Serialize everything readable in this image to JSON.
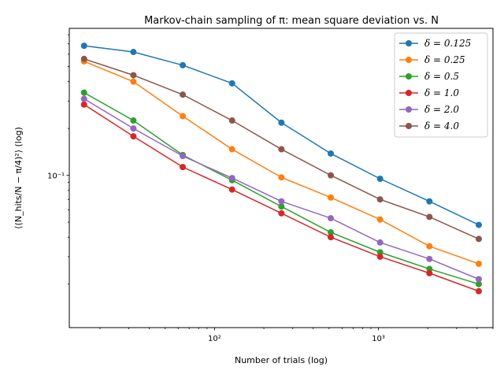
{
  "chart_data": {
    "type": "line",
    "title": "Markov-chain sampling of π: mean square deviation vs. N",
    "xlabel": "Number of trials (log)",
    "ylabel": "⟨(N_hits/N − π/4)²⟩ (log)",
    "xscale": "log",
    "yscale": "log",
    "xlim": [
      13,
      5000
    ],
    "ylim": [
      0.0105,
      0.88
    ],
    "grid": false,
    "legend_position": "top-right",
    "x": [
      16,
      32,
      64,
      128,
      256,
      512,
      1024,
      2048,
      4096
    ],
    "x_tick_labels": [
      "10²",
      "10³"
    ],
    "y_tick_labels": [
      "10⁻¹"
    ],
    "series": [
      {
        "name": "δ = 0.125",
        "color": "#1f77b4",
        "values": [
          0.68,
          0.62,
          0.51,
          0.39,
          0.218,
          0.138,
          0.095,
          0.068,
          0.048
        ]
      },
      {
        "name": "δ = 0.25",
        "color": "#ff7f0e",
        "values": [
          0.54,
          0.4,
          0.24,
          0.147,
          0.097,
          0.072,
          0.052,
          0.035,
          0.027
        ]
      },
      {
        "name": "δ = 0.5",
        "color": "#2ca02c",
        "values": [
          0.34,
          0.225,
          0.135,
          0.093,
          0.063,
          0.043,
          0.032,
          0.025,
          0.02
        ]
      },
      {
        "name": "δ = 1.0",
        "color": "#d62728",
        "values": [
          0.285,
          0.178,
          0.113,
          0.081,
          0.057,
          0.04,
          0.03,
          0.0235,
          0.018
        ]
      },
      {
        "name": "δ = 2.0",
        "color": "#9467bd",
        "values": [
          0.31,
          0.2,
          0.133,
          0.096,
          0.068,
          0.053,
          0.037,
          0.029,
          0.0215
        ]
      },
      {
        "name": "δ = 4.0",
        "color": "#8c564b",
        "values": [
          0.56,
          0.44,
          0.33,
          0.225,
          0.147,
          0.1,
          0.07,
          0.054,
          0.039
        ]
      }
    ]
  }
}
